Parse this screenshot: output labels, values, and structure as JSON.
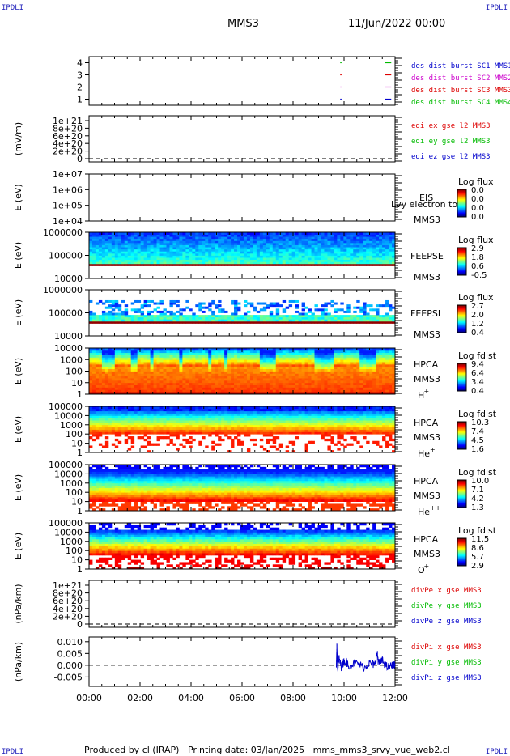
{
  "corner_labels": {
    "tl": "IPDLI",
    "tr": "IPDLI",
    "bl": "IPDLI",
    "br": "IPDLI"
  },
  "header": {
    "spacecraft": "MMS3",
    "date": "11/Jun/2022 00:00"
  },
  "footer": {
    "produced_by": "Produced by cl (IRAP)",
    "printing_date": "Printing date: 03/Jan/2025",
    "filename": "mms_mms3_srvy_vue_web2.cl"
  },
  "chart_data": [
    {
      "panel": "burst",
      "type": "line",
      "ylim": [
        0.5,
        4.5
      ],
      "yticks": [
        "1",
        "2",
        "3",
        "4"
      ],
      "legend": [
        {
          "text": "des dist burst SC1 MMS1",
          "color": "#0000cc"
        },
        {
          "text": "des dist burst SC2 MMS2",
          "color": "#cc00cc"
        },
        {
          "text": "des dist burst SC3 MMS3",
          "color": "#dd0000"
        },
        {
          "text": "des dist burst SC4 MMS4",
          "color": "#00bb00"
        }
      ],
      "series": [
        {
          "level": 1,
          "color": "#0000cc",
          "segments": [
            [
              9.85,
              9.9
            ],
            [
              11.6,
              11.85
            ]
          ]
        },
        {
          "level": 2,
          "color": "#cc00cc",
          "segments": [
            [
              9.85,
              9.9
            ],
            [
              11.6,
              11.85
            ]
          ]
        },
        {
          "level": 3,
          "color": "#dd0000",
          "segments": [
            [
              9.85,
              9.9
            ],
            [
              11.6,
              11.85
            ]
          ]
        },
        {
          "level": 4,
          "color": "#00bb00",
          "segments": [
            [
              9.85,
              9.9
            ],
            [
              11.6,
              11.85
            ]
          ]
        }
      ]
    },
    {
      "panel": "edi",
      "type": "line",
      "ylabel": "(mV/m)",
      "ylim": [
        0,
        1e+21
      ],
      "yticks": [
        "0",
        "2e+20",
        "4e+20",
        "6e+20",
        "8e+20",
        "1e+21"
      ],
      "legend": [
        {
          "text": "edi ex gse l2 MMS3",
          "color": "#dd0000"
        },
        {
          "text": "edi ey gse l2 MMS3",
          "color": "#00bb00"
        },
        {
          "text": "edi ez gse l2 MMS3",
          "color": "#0000cc"
        }
      ],
      "zero_line": true
    },
    {
      "panel": "eis",
      "type": "heatmap",
      "ylabel": "E (eV)",
      "log": true,
      "yticks": [
        "1e+04",
        "1e+05",
        "1e+06",
        "1e+07"
      ],
      "instrument": [
        "EIS",
        "MMS3"
      ],
      "overlay_text": "Lvy electron to",
      "colorbar": {
        "title": "Log flux",
        "ticks": [
          "0.0",
          "0.0",
          "0.0",
          "0.0"
        ]
      },
      "data": "empty"
    },
    {
      "panel": "feepse",
      "type": "heatmap",
      "ylabel": "E (eV)",
      "log": true,
      "yticks": [
        "10000",
        "100000",
        "1000000"
      ],
      "instrument": [
        "FEEPSE",
        "MMS3"
      ],
      "colorbar": {
        "title": "Log flux",
        "ticks": [
          "2.9",
          "1.8",
          "0.6",
          "-0.5"
        ]
      }
    },
    {
      "panel": "feepsi",
      "type": "heatmap",
      "ylabel": "E (eV)",
      "log": true,
      "yticks": [
        "10000",
        "100000",
        "1000000"
      ],
      "instrument": [
        "FEEPSI",
        "MMS3"
      ],
      "colorbar": {
        "title": "Log flux",
        "ticks": [
          "2.7",
          "2.0",
          "1.2",
          "0.4"
        ]
      }
    },
    {
      "panel": "hpca_h",
      "type": "heatmap",
      "ylabel": "E (eV)",
      "log": true,
      "yticks": [
        "1",
        "10",
        "100",
        "1000",
        "10000"
      ],
      "instrument": [
        "HPCA",
        "MMS3"
      ],
      "species": {
        "base": "H",
        "sup": "+"
      },
      "colorbar": {
        "title": "Log fdist",
        "ticks": [
          "9.4",
          "6.4",
          "3.4",
          "0.4"
        ]
      }
    },
    {
      "panel": "hpca_he",
      "type": "heatmap",
      "ylabel": "E (eV)",
      "log": true,
      "yticks": [
        "1",
        "10",
        "100",
        "1000",
        "10000",
        "100000"
      ],
      "instrument": [
        "HPCA",
        "MMS3"
      ],
      "species": {
        "base": "He",
        "sup": "+"
      },
      "colorbar": {
        "title": "Log fdist",
        "ticks": [
          "10.3",
          "7.4",
          "4.5",
          "1.6"
        ]
      }
    },
    {
      "panel": "hpca_hepp",
      "type": "heatmap",
      "ylabel": "E (eV)",
      "log": true,
      "yticks": [
        "1",
        "10",
        "100",
        "1000",
        "10000",
        "100000"
      ],
      "instrument": [
        "HPCA",
        "MMS3"
      ],
      "species": {
        "base": "He",
        "sup": "++"
      },
      "colorbar": {
        "title": "Log fdist",
        "ticks": [
          "10.0",
          "7.1",
          "4.2",
          "1.3"
        ]
      }
    },
    {
      "panel": "hpca_o",
      "type": "heatmap",
      "ylabel": "E (eV)",
      "log": true,
      "yticks": [
        "1",
        "10",
        "100",
        "1000",
        "10000",
        "100000"
      ],
      "instrument": [
        "HPCA",
        "MMS3"
      ],
      "species": {
        "base": "O",
        "sup": "+"
      },
      "colorbar": {
        "title": "Log fdist",
        "ticks": [
          "11.5",
          "8.6",
          "5.7",
          "2.9"
        ]
      }
    },
    {
      "panel": "divpe",
      "type": "line",
      "ylabel": "(nPa/km)",
      "ylim": [
        0,
        1e+21
      ],
      "yticks": [
        "0",
        "2e+20",
        "4e+20",
        "6e+20",
        "8e+20",
        "1e+21"
      ],
      "legend": [
        {
          "text": "divPe x gse MMS3",
          "color": "#dd0000"
        },
        {
          "text": "divPe y gse MMS3",
          "color": "#00bb00"
        },
        {
          "text": "divPe z gse MMS3",
          "color": "#0000cc"
        }
      ],
      "zero_line": true
    },
    {
      "panel": "divpi",
      "type": "line",
      "ylabel": "(nPa/km)",
      "ylim": [
        -0.009,
        0.012
      ],
      "yticks": [
        "-0.005",
        "0.000",
        "0.005",
        "0.010"
      ],
      "legend": [
        {
          "text": "divPi x gse MMS3",
          "color": "#dd0000"
        },
        {
          "text": "divPi y gse MMS3",
          "color": "#00bb00"
        },
        {
          "text": "divPi z gse MMS3",
          "color": "#0000cc"
        }
      ],
      "zero_line": true,
      "series": [
        {
          "name": "divPi z gse MMS3",
          "color": "#0000cc",
          "x": [
            9.7,
            9.72,
            9.75,
            9.8,
            9.9,
            10.0,
            10.2,
            10.5,
            10.8,
            11.0,
            11.2,
            11.3,
            11.35,
            11.5,
            11.7,
            11.9,
            12.0
          ],
          "y": [
            0.0,
            0.008,
            -0.002,
            0.003,
            -0.001,
            0.002,
            0.0,
            0.001,
            -0.001,
            0.001,
            0.0,
            0.005,
            0.001,
            0.002,
            -0.001,
            0.0,
            0.0
          ]
        }
      ]
    }
  ],
  "x_axis": {
    "ticks": [
      "00:00",
      "02:00",
      "04:00",
      "06:00",
      "08:00",
      "10:00",
      "12:00"
    ],
    "range_hours": [
      0,
      12
    ]
  }
}
